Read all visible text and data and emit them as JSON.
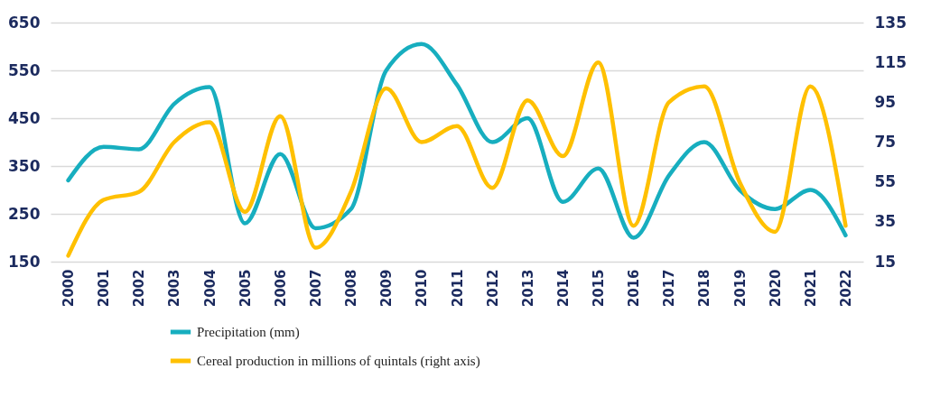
{
  "chart_data": {
    "type": "line",
    "categories": [
      "2000",
      "2001",
      "2002",
      "2003",
      "2004",
      "2005",
      "2006",
      "2007",
      "2008",
      "2009",
      "2010",
      "2011",
      "2012",
      "2013",
      "2014",
      "2015",
      "2016",
      "2017",
      "2018",
      "2019",
      "2020",
      "2021",
      "2022"
    ],
    "series": [
      {
        "name": "Precipitation (mm)",
        "color": "#17aebf",
        "values": [
          320,
          390,
          385,
          480,
          515,
          230,
          375,
          220,
          260,
          550,
          605,
          520,
          400,
          450,
          275,
          345,
          200,
          330,
          400,
          300,
          260,
          300,
          205
        ]
      },
      {
        "name": "Cereal production in millions of quintals (right axis)",
        "color": "#ffc000",
        "axis": "y2",
        "values": [
          18,
          46,
          50,
          75,
          85,
          40,
          88,
          22,
          50,
          102,
          75,
          83,
          52,
          96,
          68,
          115,
          33,
          95,
          103,
          55,
          30,
          103,
          33
        ]
      }
    ],
    "ylim": [
      150,
      650
    ],
    "yticks": [
      150,
      250,
      350,
      450,
      550,
      650
    ],
    "y2lim": [
      15,
      135
    ],
    "y2ticks": [
      15,
      35,
      55,
      75,
      95,
      115,
      135
    ],
    "grid": "y",
    "legend": "bottom left",
    "marker": "none",
    "line_style": "solid"
  }
}
